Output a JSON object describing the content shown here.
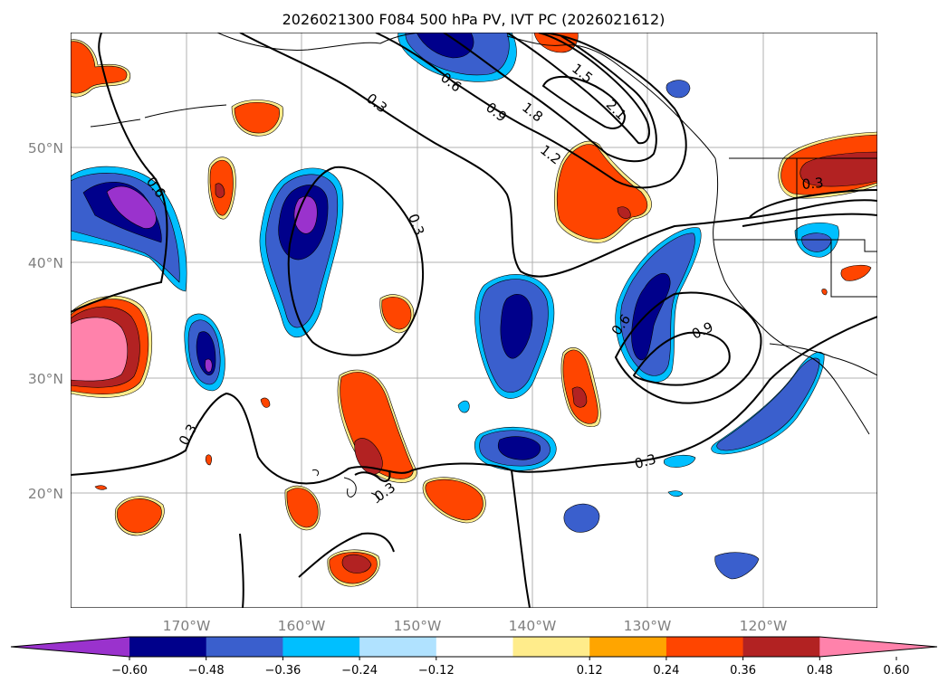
{
  "title": "2026021300 F084 500 hPa PV, IVT PC (2026021612)",
  "lat_labels": [
    "50°N",
    "40°N",
    "30°N",
    "20°N"
  ],
  "lon_labels": [
    "170°W",
    "160°W",
    "150°W",
    "140°W",
    "130°W",
    "120°W"
  ],
  "colorbar": {
    "ticks": [
      "−0.60",
      "−0.48",
      "−0.36",
      "−0.24",
      "−0.12",
      "0.12",
      "0.24",
      "0.36",
      "0.48",
      "0.60"
    ],
    "colors": [
      "#9a32cd",
      "#00008b",
      "#3a5fcd",
      "#00bfff",
      "#b0e2ff",
      "#ffffff",
      "#ffec8b",
      "#ffa500",
      "#ff4500",
      "#b22222",
      "#ff82ab"
    ]
  },
  "contour_labels": [
    "0.3",
    "0.6",
    "0.9",
    "1.2",
    "1.5",
    "1.8",
    "2.1",
    "0.6",
    "0.3",
    "0.6",
    "0.9",
    "0.3",
    "0.3",
    "0.3",
    "0.3"
  ]
}
